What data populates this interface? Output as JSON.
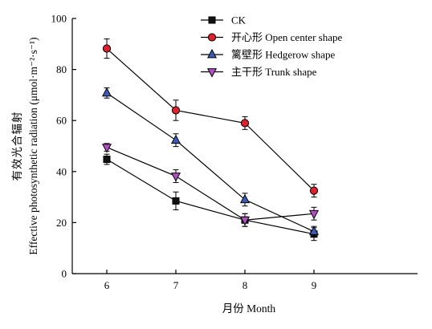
{
  "chart_data": {
    "type": "line",
    "x": [
      6,
      7,
      8,
      9
    ],
    "xlabel": "月份 Month",
    "ylabel_cn": "有效光合辐射",
    "ylabel_en": "Effective photosynthetic radiation (μmol·m⁻²·s⁻¹)",
    "xlim": [
      5.5,
      10.5
    ],
    "ylim": [
      0,
      100
    ],
    "xticks": [
      "6",
      "7",
      "8",
      "9"
    ],
    "yticks": [
      "0",
      "20",
      "40",
      "60",
      "80",
      "100"
    ],
    "grid": false,
    "legend_position": "top-center",
    "series": [
      {
        "name": "CK",
        "marker": "square",
        "marker_color": "#111111",
        "line_color": "#000000",
        "values": [
          44.8,
          28.5,
          21.0,
          15.5
        ],
        "errors": [
          2.0,
          3.5,
          2.5,
          2.5
        ]
      },
      {
        "name": "开心形 Open center shape",
        "marker": "circle",
        "marker_color": "#e0202a",
        "line_color": "#000000",
        "values": [
          88.2,
          64.0,
          59.0,
          32.5
        ],
        "errors": [
          3.8,
          4.0,
          2.5,
          2.5
        ]
      },
      {
        "name": "篱壁形 Hedgerow shape",
        "marker": "triangle-up",
        "marker_color": "#3a5bb8",
        "line_color": "#000000",
        "values": [
          70.8,
          52.3,
          29.0,
          16.5
        ],
        "errors": [
          2.0,
          2.5,
          2.5,
          2.0
        ]
      },
      {
        "name": "主干形 Trunk shape",
        "marker": "triangle-down",
        "marker_color": "#b24fc4",
        "line_color": "#000000",
        "values": [
          49.5,
          38.2,
          21.0,
          23.5
        ],
        "errors": [
          1.5,
          2.5,
          2.5,
          2.5
        ]
      }
    ]
  }
}
